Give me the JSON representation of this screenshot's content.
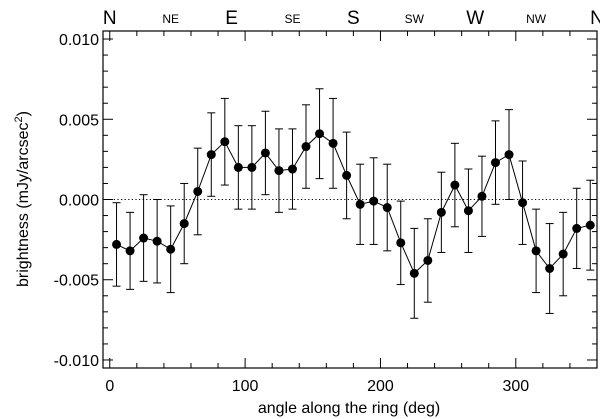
{
  "chart_data": {
    "type": "scatter",
    "xlabel": "angle along the ring (deg)",
    "ylabel": "brightness (mJy/arcsec",
    "ylabel_superscript": "2",
    "ylabel_close": ")",
    "xlim": [
      -5,
      360
    ],
    "ylim": [
      -0.0105,
      0.0105
    ],
    "x_ticks": [
      0,
      100,
      200,
      300
    ],
    "x_tick_labels": [
      "0",
      "100",
      "200",
      "300"
    ],
    "y_ticks": [
      0.01,
      0.005,
      0.0,
      -0.005,
      -0.01
    ],
    "y_tick_labels": [
      "0.010",
      "0.005",
      "0.000",
      "-0.005",
      "-0.010"
    ],
    "zero_line": {
      "y": 0,
      "style": "dotted"
    },
    "compass": [
      {
        "x": 0,
        "label": "N",
        "size": "large"
      },
      {
        "x": 45,
        "label": "NE",
        "size": "small"
      },
      {
        "x": 90,
        "label": "E",
        "size": "large"
      },
      {
        "x": 135,
        "label": "SE",
        "size": "small"
      },
      {
        "x": 180,
        "label": "S",
        "size": "large"
      },
      {
        "x": 225,
        "label": "SW",
        "size": "small"
      },
      {
        "x": 270,
        "label": "W",
        "size": "large"
      },
      {
        "x": 315,
        "label": "NW",
        "size": "small"
      },
      {
        "x": 360,
        "label": "N",
        "size": "large"
      }
    ],
    "series": [
      {
        "marker": "filled-circle",
        "line": "solid",
        "color": "#000000",
        "x": [
          5,
          15,
          25,
          35,
          45,
          55,
          65,
          75,
          85,
          95,
          105,
          115,
          125,
          135,
          145,
          155,
          165,
          175,
          185,
          195,
          205,
          215,
          225,
          235,
          245,
          255,
          265,
          275,
          285,
          295,
          305,
          315,
          325,
          335,
          345,
          355
        ],
        "y": [
          -0.0028,
          -0.0032,
          -0.0024,
          -0.0026,
          -0.0031,
          -0.0015,
          0.0005,
          0.0028,
          0.0036,
          0.002,
          0.002,
          0.0029,
          0.0018,
          0.0019,
          0.0033,
          0.0041,
          0.0035,
          0.0015,
          -0.0003,
          -0.0001,
          -0.0005,
          -0.0027,
          -0.0046,
          -0.0038,
          -0.0008,
          0.0009,
          -0.0007,
          0.0002,
          0.0023,
          0.0028,
          -0.0002,
          -0.0032,
          -0.0043,
          -0.0034,
          -0.0018,
          -0.0016
        ],
        "err": [
          0.0026,
          0.0024,
          0.0027,
          0.0026,
          0.0027,
          0.0025,
          0.0027,
          0.0026,
          0.0027,
          0.0026,
          0.0026,
          0.0026,
          0.0026,
          0.0025,
          0.0026,
          0.0028,
          0.0028,
          0.0027,
          0.0025,
          0.0027,
          0.0027,
          0.0026,
          0.0028,
          0.0026,
          0.0025,
          0.0026,
          0.0026,
          0.0025,
          0.0026,
          0.0028,
          0.0026,
          0.0026,
          0.0028,
          0.0026,
          0.0025,
          0.0028
        ]
      }
    ]
  }
}
